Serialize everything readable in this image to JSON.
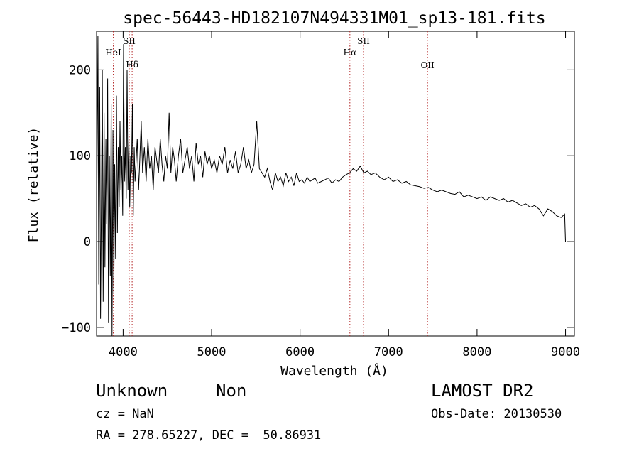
{
  "chart_data": {
    "type": "line",
    "title": "spec-56443-HD182107N494331M01_sp13-181.fits",
    "xlabel": "Wavelength (Å)",
    "ylabel": "Flux (relative)",
    "xlim": [
      3700,
      9100
    ],
    "ylim": [
      -110,
      245
    ],
    "xticks": [
      4000,
      5000,
      6000,
      7000,
      8000,
      9000
    ],
    "yticks": [
      -100,
      0,
      100,
      200
    ],
    "x_tick_labels": [
      "4000",
      "5000",
      "6000",
      "7000",
      "8000",
      "9000"
    ],
    "y_tick_labels": [
      "−100",
      "0",
      "100",
      "200"
    ],
    "grid": false,
    "line_color": "#000000",
    "marker_color": "#b22222",
    "series": [
      {
        "x": [
          3700,
          3715,
          3725,
          3735,
          3745,
          3755,
          3765,
          3775,
          3785,
          3795,
          3805,
          3815,
          3825,
          3835,
          3845,
          3855,
          3865,
          3875,
          3885,
          3895,
          3905,
          3915,
          3925,
          3935,
          3945,
          3955,
          3965,
          3975,
          3985,
          3995,
          4005,
          4015,
          4025,
          4035,
          4045,
          4055,
          4065,
          4075,
          4085,
          4095,
          4105,
          4115,
          4125,
          4135,
          4145,
          4160,
          4175,
          4190,
          4205,
          4220,
          4240,
          4260,
          4280,
          4300,
          4320,
          4340,
          4360,
          4380,
          4400,
          4420,
          4440,
          4460,
          4480,
          4500,
          4520,
          4540,
          4560,
          4580,
          4600,
          4625,
          4650,
          4675,
          4700,
          4725,
          4750,
          4775,
          4800,
          4825,
          4850,
          4875,
          4900,
          4925,
          4950,
          4975,
          5000,
          5030,
          5060,
          5090,
          5120,
          5150,
          5180,
          5210,
          5240,
          5270,
          5300,
          5330,
          5360,
          5390,
          5420,
          5450,
          5480,
          5510,
          5540,
          5570,
          5600,
          5630,
          5660,
          5690,
          5720,
          5750,
          5780,
          5810,
          5840,
          5870,
          5900,
          5930,
          5960,
          5990,
          6020,
          6050,
          6080,
          6110,
          6140,
          6170,
          6200,
          6240,
          6280,
          6320,
          6360,
          6400,
          6440,
          6480,
          6520,
          6560,
          6600,
          6640,
          6680,
          6720,
          6760,
          6800,
          6850,
          6900,
          6950,
          7000,
          7050,
          7100,
          7150,
          7200,
          7250,
          7300,
          7350,
          7400,
          7450,
          7500,
          7550,
          7600,
          7650,
          7700,
          7750,
          7800,
          7850,
          7900,
          7950,
          8000,
          8050,
          8100,
          8150,
          8200,
          8250,
          8300,
          8350,
          8400,
          8450,
          8500,
          8550,
          8600,
          8650,
          8700,
          8750,
          8800,
          8850,
          8900,
          8950,
          8990,
          9000
        ],
        "y": [
          5,
          240,
          -50,
          180,
          -90,
          60,
          200,
          -70,
          150,
          -30,
          120,
          20,
          190,
          -95,
          100,
          -40,
          160,
          -110,
          130,
          -60,
          90,
          -20,
          170,
          10,
          110,
          40,
          140,
          60,
          100,
          30,
          230,
          70,
          110,
          50,
          200,
          60,
          120,
          40,
          100,
          80,
          160,
          30,
          110,
          70,
          90,
          120,
          60,
          100,
          140,
          80,
          110,
          70,
          120,
          85,
          100,
          60,
          110,
          95,
          80,
          120,
          90,
          70,
          100,
          85,
          150,
          80,
          110,
          95,
          70,
          100,
          120,
          80,
          95,
          110,
          85,
          100,
          70,
          115,
          90,
          100,
          75,
          105,
          90,
          100,
          85,
          95,
          80,
          100,
          90,
          110,
          80,
          95,
          85,
          105,
          80,
          90,
          110,
          85,
          95,
          80,
          90,
          140,
          85,
          80,
          75,
          85,
          70,
          60,
          80,
          70,
          75,
          65,
          80,
          70,
          75,
          65,
          80,
          70,
          72,
          68,
          75,
          70,
          72,
          74,
          68,
          70,
          72,
          74,
          68,
          72,
          70,
          75,
          78,
          80,
          85,
          82,
          88,
          80,
          82,
          78,
          80,
          75,
          72,
          75,
          70,
          72,
          68,
          70,
          66,
          65,
          64,
          62,
          63,
          60,
          58,
          60,
          58,
          56,
          55,
          58,
          52,
          54,
          52,
          50,
          52,
          48,
          52,
          50,
          48,
          50,
          46,
          48,
          45,
          42,
          44,
          40,
          42,
          38,
          30,
          38,
          35,
          30,
          28,
          32,
          0
        ]
      }
    ],
    "line_markers": [
      {
        "name": "HeI",
        "wavelength": 3889
      },
      {
        "name": "SII",
        "wavelength": 4069
      },
      {
        "name": "Hδ",
        "wavelength": 4102
      },
      {
        "name": "Hα",
        "wavelength": 6563
      },
      {
        "name": "SII",
        "wavelength": 6717
      },
      {
        "name": "OII",
        "wavelength": 7440
      }
    ]
  },
  "info": {
    "classification": "Unknown",
    "subclass": "Non",
    "survey": "LAMOST DR2",
    "redshift": "cz = NaN",
    "obs_date": "Obs-Date: 20130530",
    "coordinates": "RA = 278.65227, DEC =  50.86931"
  }
}
